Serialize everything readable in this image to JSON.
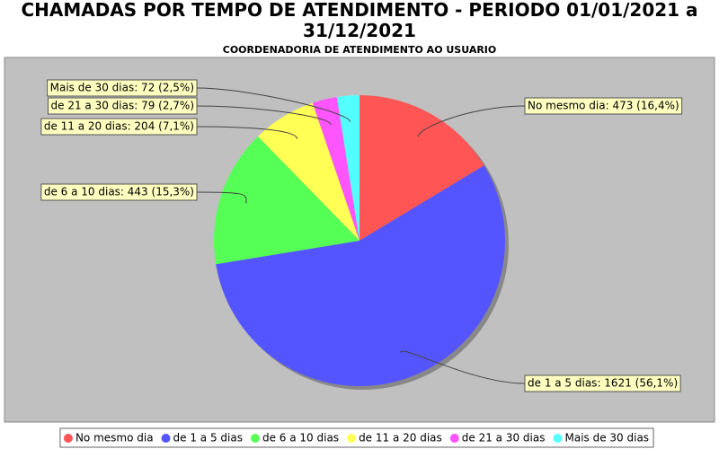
{
  "chart_data": {
    "type": "pie",
    "title": "CHAMADAS POR TEMPO DE ATENDIMENTO - PERIODO 01/01/2021 a 31/12/2021",
    "subtitle": "COORDENADORIA DE ATENDIMENTO AO USUARIO",
    "categories": [
      "No mesmo dia",
      "de 1 a 5 dias",
      "de 6 a 10 dias",
      "de 11 a 20 dias",
      "de 21 a 30 dias",
      "Mais de 30 dias"
    ],
    "values": [
      473,
      1621,
      443,
      204,
      79,
      72
    ],
    "value_labels": [
      "No mesmo dia: 473 (16,4%)",
      "de 1 a 5 dias: 1621 (56,1%)",
      "de 6 a 10 dias: 443 (15,3%)",
      "de 11 a 20 dias: 204 (7,1%)",
      "de 21 a 30 dias: 79 (2,7%)",
      "Mais de 30 dias: 72 (2,5%)"
    ],
    "colors": [
      "#ff5555",
      "#5555ff",
      "#55ff55",
      "#ffff55",
      "#ff55ff",
      "#55ffff"
    ],
    "legend": "bottom"
  }
}
